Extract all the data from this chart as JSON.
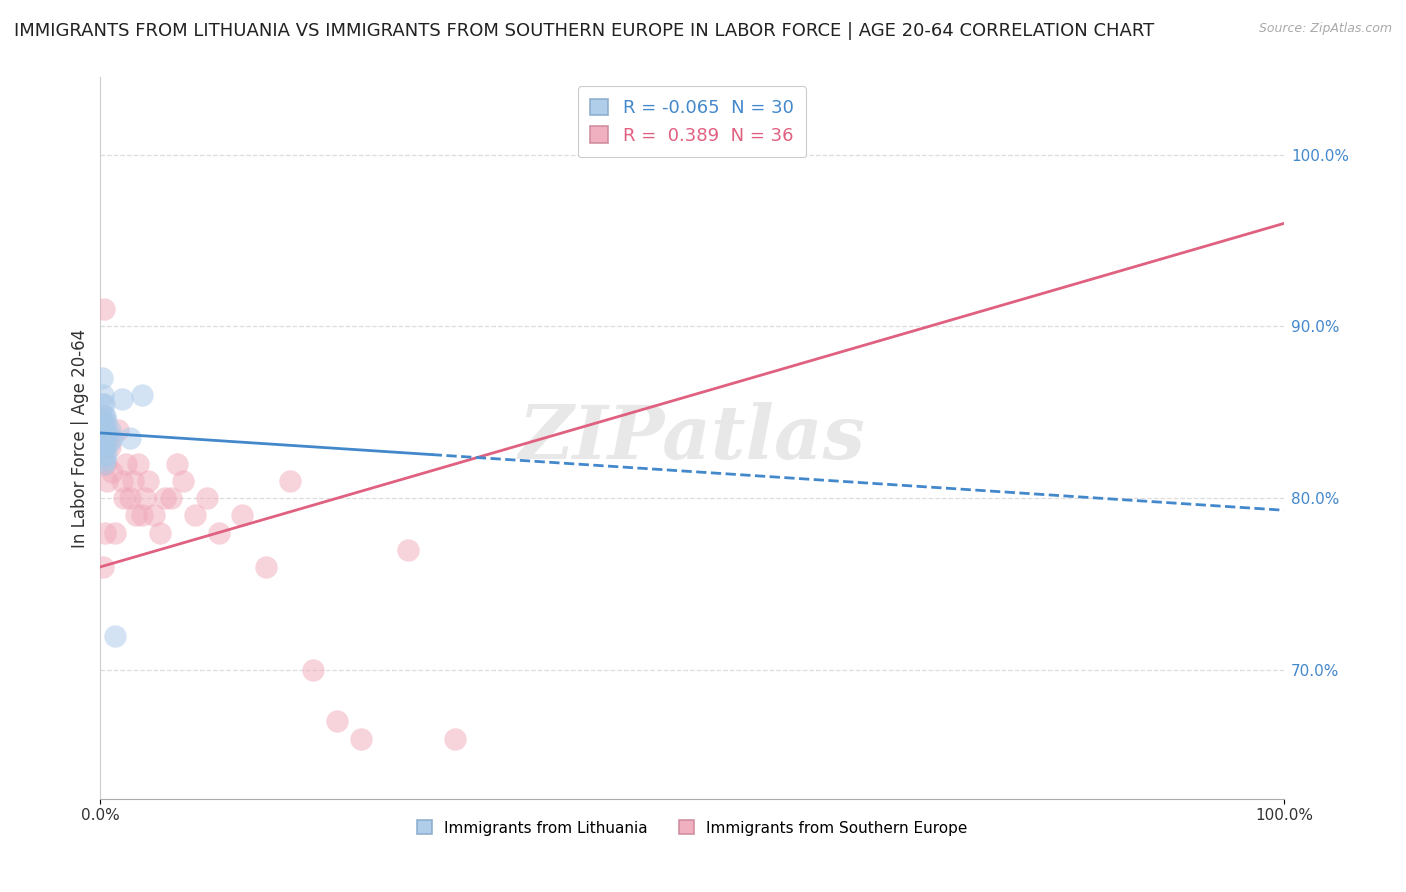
{
  "title": "IMMIGRANTS FROM LITHUANIA VS IMMIGRANTS FROM SOUTHERN EUROPE IN LABOR FORCE | AGE 20-64 CORRELATION CHART",
  "source": "Source: ZipAtlas.com",
  "ylabel": "In Labor Force | Age 20-64",
  "xmin": 0.0,
  "xmax": 1.0,
  "ymin": 0.625,
  "ymax": 1.045,
  "right_yticks": [
    0.7,
    0.8,
    0.9,
    1.0
  ],
  "right_yticklabels": [
    "70.0%",
    "80.0%",
    "90.0%",
    "100.0%"
  ],
  "xtick_labels": [
    "0.0%",
    "100.0%"
  ],
  "xtick_vals": [
    0.0,
    1.0
  ],
  "watermark": "ZIPatlas",
  "lith_color": "#a8c8e8",
  "south_color": "#f0a8b8",
  "lith_line_color": "#4488cc",
  "south_line_color": "#e06080",
  "grid_color": "#dddddd",
  "background_color": "#ffffff",
  "title_fontsize": 13,
  "axis_label_fontsize": 12,
  "tick_fontsize": 11,
  "dot_size": 260,
  "dot_alpha": 0.5,
  "line_lw": 2.0,
  "R_lith": -0.065,
  "N_lith": 30,
  "R_south": 0.389,
  "N_south": 36,
  "lith_name": "Immigrants from Lithuania",
  "south_name": "Immigrants from Southern Europe",
  "lith_x": [
    0.001,
    0.001,
    0.001,
    0.001,
    0.002,
    0.002,
    0.002,
    0.002,
    0.003,
    0.003,
    0.003,
    0.003,
    0.003,
    0.003,
    0.003,
    0.004,
    0.004,
    0.004,
    0.004,
    0.005,
    0.005,
    0.005,
    0.006,
    0.007,
    0.008,
    0.01,
    0.012,
    0.018,
    0.025,
    0.035
  ],
  "lith_y": [
    0.87,
    0.855,
    0.845,
    0.835,
    0.86,
    0.845,
    0.84,
    0.83,
    0.855,
    0.848,
    0.842,
    0.836,
    0.83,
    0.825,
    0.82,
    0.848,
    0.838,
    0.83,
    0.822,
    0.845,
    0.835,
    0.825,
    0.838,
    0.832,
    0.84,
    0.835,
    0.72,
    0.858,
    0.835,
    0.86
  ],
  "south_x": [
    0.002,
    0.003,
    0.004,
    0.005,
    0.006,
    0.008,
    0.01,
    0.012,
    0.015,
    0.018,
    0.02,
    0.022,
    0.025,
    0.028,
    0.03,
    0.032,
    0.035,
    0.038,
    0.04,
    0.045,
    0.05,
    0.055,
    0.06,
    0.065,
    0.07,
    0.08,
    0.09,
    0.1,
    0.12,
    0.14,
    0.16,
    0.18,
    0.2,
    0.22,
    0.26,
    0.3
  ],
  "south_y": [
    0.76,
    0.91,
    0.78,
    0.82,
    0.81,
    0.83,
    0.815,
    0.78,
    0.84,
    0.81,
    0.8,
    0.82,
    0.8,
    0.81,
    0.79,
    0.82,
    0.79,
    0.8,
    0.81,
    0.79,
    0.78,
    0.8,
    0.8,
    0.82,
    0.81,
    0.79,
    0.8,
    0.78,
    0.79,
    0.76,
    0.81,
    0.7,
    0.67,
    0.66,
    0.77,
    0.66
  ],
  "lith_trend_x0": 0.0,
  "lith_trend_x1": 1.0,
  "lith_trend_y0": 0.838,
  "lith_trend_y1": 0.793,
  "south_trend_x0": 0.0,
  "south_trend_x1": 1.0,
  "south_trend_y0": 0.76,
  "south_trend_y1": 0.96
}
